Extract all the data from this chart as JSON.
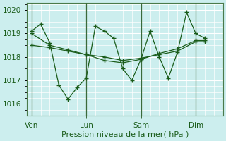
{
  "background_color": "#cceeee",
  "grid_color": "#ffffff",
  "line_color": "#1a5c1a",
  "xlabel": "Pression niveau de la mer( hPa )",
  "xlabel_fontsize": 8,
  "tick_label_fontsize": 7.5,
  "ylim": [
    1015.5,
    1020.3
  ],
  "yticks": [
    1016,
    1017,
    1018,
    1019,
    1020
  ],
  "xtick_labels": [
    "Ven",
    "Lun",
    "Sam",
    "Dim"
  ],
  "xtick_positions": [
    0,
    24,
    48,
    72
  ],
  "vline_positions": [
    0,
    24,
    48,
    72
  ],
  "xlim": [
    -2,
    84
  ],
  "series": [
    {
      "x": [
        0,
        4,
        8,
        12,
        16,
        20,
        24,
        28,
        32,
        36,
        40,
        44,
        48,
        52,
        56,
        60,
        64,
        68,
        72,
        76
      ],
      "y": [
        1019.1,
        1019.4,
        1018.6,
        1016.8,
        1016.2,
        1016.7,
        1017.1,
        1019.3,
        1019.1,
        1018.8,
        1017.5,
        1017.0,
        1017.9,
        1019.1,
        1018.0,
        1017.1,
        1018.2,
        1019.9,
        1019.0,
        1018.8
      ]
    },
    {
      "x": [
        0,
        8,
        16,
        24,
        32,
        40,
        48,
        56,
        64,
        72,
        76
      ],
      "y": [
        1019.0,
        1018.5,
        1018.3,
        1018.1,
        1017.85,
        1017.75,
        1017.9,
        1018.15,
        1018.35,
        1018.7,
        1018.7
      ]
    },
    {
      "x": [
        0,
        8,
        16,
        24,
        32,
        40,
        48,
        56,
        64,
        72,
        76
      ],
      "y": [
        1018.5,
        1018.4,
        1018.25,
        1018.1,
        1018.0,
        1017.85,
        1017.95,
        1018.1,
        1018.25,
        1018.65,
        1018.65
      ]
    }
  ]
}
